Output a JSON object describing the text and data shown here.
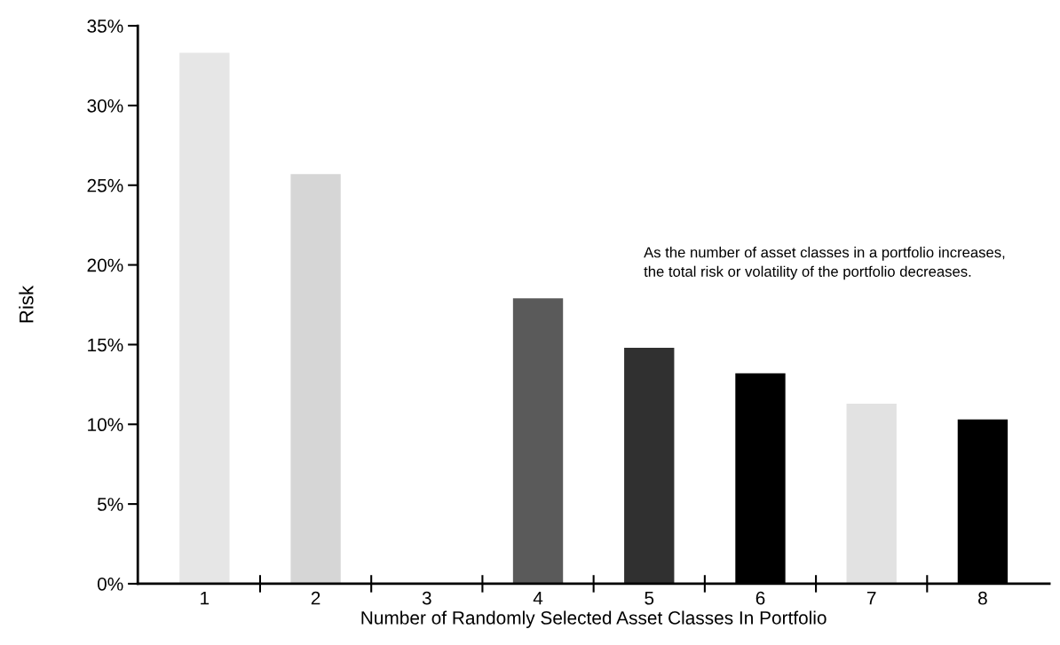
{
  "chart_data": {
    "type": "bar",
    "xlabel": "Number of Randomly Selected Asset Classes In Portfolio",
    "ylabel": "Risk",
    "categories": [
      "1",
      "2",
      "3",
      "4",
      "5",
      "6",
      "7",
      "8"
    ],
    "values": [
      33.3,
      25.7,
      null,
      17.9,
      14.8,
      13.2,
      11.3,
      10.3
    ],
    "colors": [
      "#e6e6e6",
      "#d6d6d6",
      "#ffffff",
      "#5a5a5a",
      "#303030",
      "#000000",
      "#e2e2e2",
      "#000000"
    ],
    "ylim": [
      0,
      35
    ],
    "yticks": [
      {
        "value": 0,
        "label": "0%"
      },
      {
        "value": 5,
        "label": "5%"
      },
      {
        "value": 10,
        "label": "10%"
      },
      {
        "value": 15,
        "label": "15%"
      },
      {
        "value": 20,
        "label": "20%"
      },
      {
        "value": 25,
        "label": "25%"
      },
      {
        "value": 30,
        "label": "30%"
      },
      {
        "value": 35,
        "label": "35%"
      }
    ],
    "grid": false,
    "legend": false,
    "annotations": [
      "As the number of asset classes in a portfolio increases,\nthe total risk or volatility of the portfolio decreases."
    ]
  }
}
